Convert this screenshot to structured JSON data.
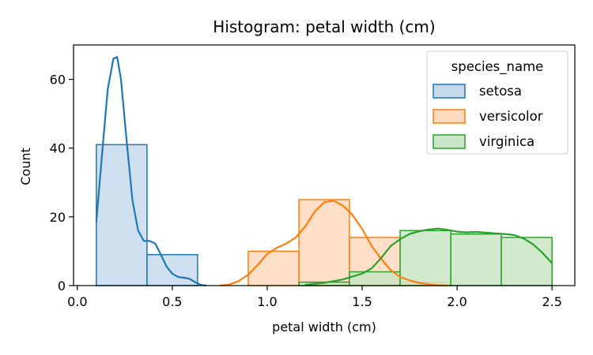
{
  "chart_data": {
    "type": "histogram",
    "title": "Histogram: petal width (cm)",
    "xlabel": "petal width (cm)",
    "ylabel": "Count",
    "xlim": [
      -0.02,
      2.62
    ],
    "ylim": [
      0,
      70
    ],
    "xticks": [
      0.0,
      0.5,
      1.0,
      1.5,
      2.0,
      2.5
    ],
    "xtick_labels": [
      "0.0",
      "0.5",
      "1.0",
      "1.5",
      "2.0",
      "2.5"
    ],
    "yticks": [
      0,
      20,
      40,
      60
    ],
    "ytick_labels": [
      "0",
      "20",
      "40",
      "60"
    ],
    "legend": {
      "title": "species_name",
      "placement": "top-right"
    },
    "series": [
      {
        "name": "setosa",
        "color": "#1f77b4",
        "fill": "#c5d9ec",
        "bins": [
          {
            "x0": 0.1,
            "x1": 0.367,
            "count": 41
          },
          {
            "x0": 0.367,
            "x1": 0.633,
            "count": 9
          }
        ],
        "kde": [
          [
            0.1,
            18.5
          ],
          [
            0.13,
            38
          ],
          [
            0.16,
            57
          ],
          [
            0.19,
            66
          ],
          [
            0.21,
            66.5
          ],
          [
            0.23,
            60
          ],
          [
            0.26,
            42
          ],
          [
            0.29,
            25
          ],
          [
            0.32,
            16
          ],
          [
            0.35,
            13
          ],
          [
            0.38,
            13
          ],
          [
            0.41,
            12.2
          ],
          [
            0.44,
            9
          ],
          [
            0.47,
            5.5
          ],
          [
            0.5,
            3.5
          ],
          [
            0.53,
            2.5
          ],
          [
            0.56,
            2.3
          ],
          [
            0.59,
            2
          ],
          [
            0.62,
            1
          ],
          [
            0.65,
            0.2
          ],
          [
            0.68,
            0
          ]
        ]
      },
      {
        "name": "versicolor",
        "color": "#ff7f0e",
        "fill": "#ffd9bd",
        "bins": [
          {
            "x0": 0.9,
            "x1": 1.167,
            "count": 10
          },
          {
            "x0": 1.167,
            "x1": 1.433,
            "count": 25
          },
          {
            "x0": 1.433,
            "x1": 1.7,
            "count": 14
          },
          {
            "x0": 1.7,
            "x1": 1.967,
            "count": 1
          }
        ],
        "kde": [
          [
            0.75,
            0
          ],
          [
            0.8,
            0.3
          ],
          [
            0.85,
            1.3
          ],
          [
            0.9,
            3.2
          ],
          [
            0.95,
            6
          ],
          [
            1.0,
            9.2
          ],
          [
            1.05,
            11
          ],
          [
            1.1,
            12.2
          ],
          [
            1.15,
            14
          ],
          [
            1.2,
            17.2
          ],
          [
            1.25,
            21.5
          ],
          [
            1.3,
            24.3
          ],
          [
            1.35,
            24.7
          ],
          [
            1.4,
            23.2
          ],
          [
            1.45,
            20.5
          ],
          [
            1.5,
            16.5
          ],
          [
            1.55,
            11.5
          ],
          [
            1.6,
            7.8
          ],
          [
            1.65,
            4.5
          ],
          [
            1.7,
            2.5
          ],
          [
            1.75,
            1.5
          ],
          [
            1.8,
            0.8
          ],
          [
            1.85,
            0.4
          ],
          [
            1.9,
            0.1
          ],
          [
            1.95,
            0
          ]
        ]
      },
      {
        "name": "virginica",
        "color": "#2ca02c",
        "fill": "#c9e6c6",
        "bins": [
          {
            "x0": 1.167,
            "x1": 1.433,
            "count": 1
          },
          {
            "x0": 1.433,
            "x1": 1.7,
            "count": 4
          },
          {
            "x0": 1.7,
            "x1": 1.967,
            "count": 16
          },
          {
            "x0": 1.967,
            "x1": 2.233,
            "count": 15
          },
          {
            "x0": 2.233,
            "x1": 2.5,
            "count": 14
          }
        ],
        "kde": [
          [
            1.2,
            0.2
          ],
          [
            1.3,
            0.8
          ],
          [
            1.4,
            1.8
          ],
          [
            1.5,
            3.5
          ],
          [
            1.55,
            5
          ],
          [
            1.6,
            8
          ],
          [
            1.65,
            11.5
          ],
          [
            1.7,
            13.5
          ],
          [
            1.75,
            15
          ],
          [
            1.8,
            15.8
          ],
          [
            1.85,
            16.3
          ],
          [
            1.9,
            16.6
          ],
          [
            1.95,
            16.2
          ],
          [
            2.0,
            15.7
          ],
          [
            2.05,
            15.5
          ],
          [
            2.1,
            15.6
          ],
          [
            2.15,
            15.4
          ],
          [
            2.2,
            15.2
          ],
          [
            2.25,
            15
          ],
          [
            2.3,
            14.7
          ],
          [
            2.35,
            13.7
          ],
          [
            2.4,
            12
          ],
          [
            2.45,
            9.5
          ],
          [
            2.5,
            6.5
          ]
        ]
      }
    ]
  }
}
